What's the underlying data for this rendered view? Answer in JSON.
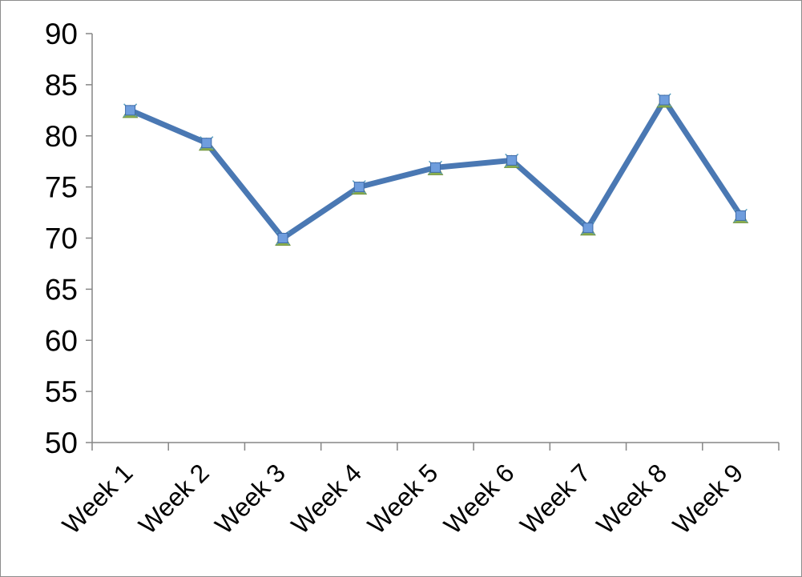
{
  "chart_data": {
    "type": "line",
    "categories": [
      "Week 1",
      "Week 2",
      "Week 3",
      "Week 4",
      "Week 5",
      "Week 6",
      "Week 7",
      "Week 8",
      "Week 9"
    ],
    "values": [
      82.5,
      79.3,
      70.0,
      75.0,
      76.9,
      77.6,
      71.0,
      83.5,
      72.2
    ],
    "color": "#4a78b3",
    "ylim": [
      50,
      90
    ],
    "yticks": [
      50,
      55,
      60,
      65,
      70,
      75,
      80,
      85,
      90
    ],
    "grid": false
  }
}
